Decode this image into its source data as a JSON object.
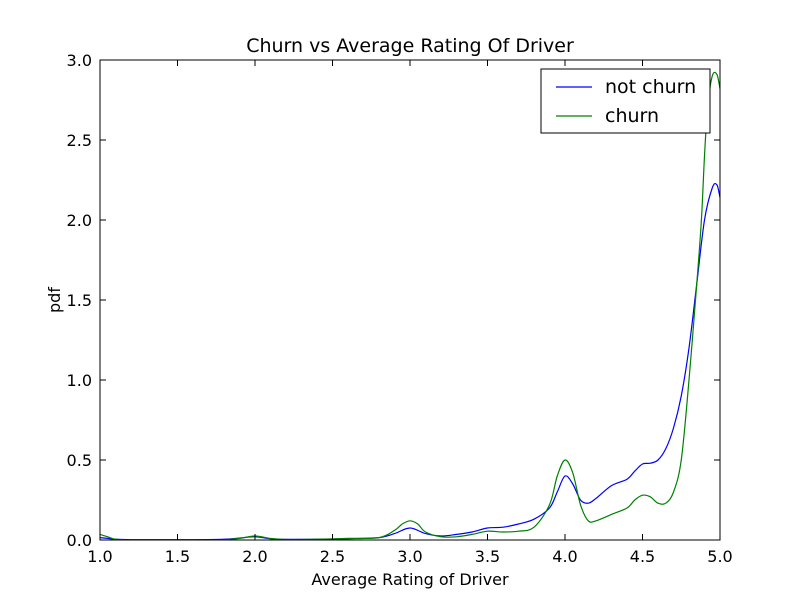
{
  "chart_data": {
    "type": "line",
    "title": "Churn vs Average Rating Of Driver",
    "xlabel": "Average Rating of Driver",
    "ylabel": "pdf",
    "xlim": [
      1.0,
      5.0
    ],
    "ylim": [
      0.0,
      3.0
    ],
    "x_ticks": [
      "1.0",
      "1.5",
      "2.0",
      "2.5",
      "3.0",
      "3.5",
      "4.0",
      "4.5",
      "5.0"
    ],
    "y_ticks": [
      "0.0",
      "0.5",
      "1.0",
      "1.5",
      "2.0",
      "2.5",
      "3.0"
    ],
    "grid": false,
    "legend_position": "top-right",
    "series": [
      {
        "name": "not churn",
        "color": "#0000ff",
        "x": [
          1.0,
          1.05,
          1.1,
          1.2,
          1.4,
          1.6,
          1.8,
          1.9,
          2.0,
          2.1,
          2.2,
          2.4,
          2.6,
          2.8,
          2.9,
          3.0,
          3.1,
          3.2,
          3.3,
          3.4,
          3.5,
          3.6,
          3.7,
          3.8,
          3.9,
          3.95,
          4.0,
          4.05,
          4.1,
          4.15,
          4.2,
          4.3,
          4.4,
          4.45,
          4.5,
          4.55,
          4.6,
          4.65,
          4.7,
          4.75,
          4.8,
          4.85,
          4.9,
          4.95,
          4.98,
          5.0
        ],
        "y": [
          0.015,
          0.01,
          0.005,
          0.002,
          0.002,
          0.002,
          0.005,
          0.012,
          0.02,
          0.008,
          0.004,
          0.005,
          0.008,
          0.015,
          0.04,
          0.075,
          0.04,
          0.025,
          0.035,
          0.05,
          0.075,
          0.08,
          0.1,
          0.13,
          0.2,
          0.3,
          0.4,
          0.35,
          0.25,
          0.23,
          0.26,
          0.34,
          0.38,
          0.43,
          0.475,
          0.48,
          0.5,
          0.57,
          0.7,
          0.9,
          1.2,
          1.6,
          2.0,
          2.2,
          2.22,
          2.14
        ]
      },
      {
        "name": "churn",
        "color": "#008000",
        "x": [
          1.0,
          1.05,
          1.1,
          1.2,
          1.4,
          1.6,
          1.8,
          1.9,
          2.0,
          2.1,
          2.2,
          2.4,
          2.6,
          2.8,
          2.9,
          2.95,
          3.0,
          3.05,
          3.1,
          3.2,
          3.3,
          3.4,
          3.5,
          3.6,
          3.7,
          3.8,
          3.9,
          3.95,
          4.0,
          4.05,
          4.1,
          4.15,
          4.2,
          4.3,
          4.4,
          4.45,
          4.5,
          4.55,
          4.6,
          4.65,
          4.7,
          4.75,
          4.8,
          4.85,
          4.88,
          4.9,
          4.92,
          4.95,
          4.98,
          5.0
        ],
        "y": [
          0.035,
          0.02,
          0.005,
          0.001,
          0.001,
          0.001,
          0.002,
          0.01,
          0.025,
          0.01,
          0.003,
          0.005,
          0.01,
          0.015,
          0.06,
          0.1,
          0.12,
          0.1,
          0.05,
          0.02,
          0.02,
          0.035,
          0.055,
          0.05,
          0.055,
          0.08,
          0.22,
          0.4,
          0.5,
          0.42,
          0.22,
          0.12,
          0.12,
          0.16,
          0.2,
          0.25,
          0.28,
          0.27,
          0.23,
          0.23,
          0.3,
          0.5,
          1.0,
          1.6,
          2.0,
          2.4,
          2.7,
          2.9,
          2.91,
          2.82
        ]
      }
    ]
  }
}
